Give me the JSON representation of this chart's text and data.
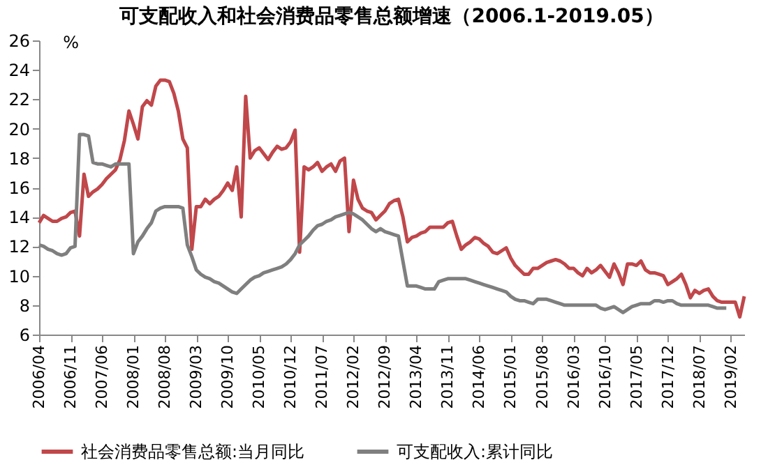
{
  "chart_data": {
    "type": "line",
    "title": "可支配收入和社会消费品零售总额增速（2006.1-2019.05）",
    "ylabel": "%",
    "categories": [
      "2006/04",
      null,
      null,
      null,
      null,
      null,
      null,
      "2006/11",
      null,
      null,
      null,
      null,
      null,
      null,
      "2007/06",
      null,
      null,
      null,
      null,
      null,
      null,
      "2008/01",
      null,
      null,
      null,
      null,
      null,
      null,
      "2008/08",
      null,
      null,
      null,
      null,
      null,
      null,
      "2009/03",
      null,
      null,
      null,
      null,
      null,
      null,
      "2009/10",
      null,
      null,
      null,
      null,
      null,
      null,
      "2010/05",
      null,
      null,
      null,
      null,
      null,
      null,
      "2010/12",
      null,
      null,
      null,
      null,
      null,
      null,
      "2011/07",
      null,
      null,
      null,
      null,
      null,
      null,
      "2012/02",
      null,
      null,
      null,
      null,
      null,
      null,
      "2012/09",
      null,
      null,
      null,
      null,
      null,
      null,
      "2013/04",
      null,
      null,
      null,
      null,
      null,
      null,
      "2013/11",
      null,
      null,
      null,
      null,
      null,
      null,
      "2014/06",
      null,
      null,
      null,
      null,
      null,
      null,
      "2015/01",
      null,
      null,
      null,
      null,
      null,
      null,
      "2015/08",
      null,
      null,
      null,
      null,
      null,
      null,
      "2016/03",
      null,
      null,
      null,
      null,
      null,
      null,
      "2016/10",
      null,
      null,
      null,
      null,
      null,
      null,
      "2017/05",
      null,
      null,
      null,
      null,
      null,
      null,
      "2017/12",
      null,
      null,
      null,
      null,
      null,
      null,
      "2018/07",
      null,
      null,
      null,
      null,
      null,
      null,
      "2019/02",
      null,
      null,
      null
    ],
    "series": [
      {
        "name": "社会消费品零售总额:当月同比",
        "color": "#c0474a",
        "values": [
          13.6,
          14.1,
          13.9,
          13.7,
          13.7,
          13.9,
          14.0,
          14.3,
          14.4,
          12.7,
          16.9,
          15.4,
          15.7,
          15.9,
          16.2,
          16.6,
          16.9,
          17.2,
          17.9,
          19.2,
          21.2,
          20.3,
          19.3,
          21.5,
          21.9,
          21.6,
          22.9,
          23.3,
          23.3,
          23.2,
          22.4,
          21.2,
          19.3,
          18.7,
          11.8,
          14.7,
          14.7,
          15.2,
          14.9,
          15.2,
          15.4,
          15.8,
          16.3,
          15.8,
          17.4,
          14.0,
          22.2,
          18.0,
          18.5,
          18.7,
          18.3,
          17.9,
          18.4,
          18.8,
          18.6,
          18.7,
          19.1,
          19.9,
          11.6,
          17.4,
          17.2,
          17.4,
          17.7,
          17.1,
          17.4,
          17.6,
          17.1,
          17.8,
          18.0,
          13.0,
          16.5,
          15.2,
          14.6,
          14.4,
          14.3,
          13.8,
          14.1,
          14.4,
          14.9,
          15.1,
          15.2,
          14.0,
          12.3,
          12.6,
          12.7,
          12.9,
          13.0,
          13.3,
          13.3,
          13.3,
          13.3,
          13.6,
          13.7,
          12.7,
          11.8,
          12.1,
          12.3,
          12.6,
          12.5,
          12.2,
          12.0,
          11.6,
          11.5,
          11.7,
          11.9,
          11.2,
          10.7,
          10.4,
          10.1,
          10.1,
          10.5,
          10.5,
          10.7,
          10.9,
          11.0,
          11.1,
          11.0,
          10.8,
          10.5,
          10.5,
          10.2,
          10.0,
          10.5,
          10.2,
          10.4,
          10.7,
          10.3,
          9.9,
          10.8,
          10.2,
          9.4,
          10.8,
          10.8,
          10.7,
          11.0,
          10.4,
          10.2,
          10.2,
          10.1,
          10.0,
          9.4,
          9.6,
          9.8,
          10.1,
          9.4,
          8.5,
          9.0,
          8.8,
          9.0,
          9.1,
          8.6,
          8.3,
          8.2,
          8.2,
          8.2,
          8.2,
          7.2,
          8.6
        ]
      },
      {
        "name": "可支配收入:累计同比",
        "color": "#7f7f7f",
        "values": [
          12.1,
          12.0,
          11.8,
          11.7,
          11.5,
          11.4,
          11.5,
          11.9,
          12.0,
          19.6,
          19.6,
          19.5,
          17.7,
          17.6,
          17.6,
          17.5,
          17.4,
          17.6,
          17.6,
          17.6,
          17.6,
          11.5,
          12.3,
          12.7,
          13.2,
          13.6,
          14.4,
          14.6,
          14.7,
          14.7,
          14.7,
          14.7,
          14.6,
          12.1,
          11.3,
          10.4,
          10.1,
          9.9,
          9.8,
          9.6,
          9.5,
          9.3,
          9.1,
          8.9,
          8.8,
          9.1,
          9.4,
          9.7,
          9.9,
          10.0,
          10.2,
          10.3,
          10.4,
          10.5,
          10.6,
          10.8,
          11.1,
          11.5,
          12.1,
          12.4,
          12.7,
          13.1,
          13.4,
          13.5,
          13.7,
          13.8,
          14.0,
          14.1,
          14.2,
          14.3,
          14.2,
          14.0,
          13.8,
          13.5,
          13.2,
          13.0,
          13.2,
          13.0,
          12.9,
          12.8,
          12.7,
          11.0,
          9.3,
          9.3,
          9.3,
          9.2,
          9.1,
          9.1,
          9.1,
          9.6,
          9.7,
          9.8,
          9.8,
          9.8,
          9.8,
          9.8,
          9.7,
          9.6,
          9.5,
          9.4,
          9.3,
          9.2,
          9.1,
          9.0,
          8.9,
          8.6,
          8.4,
          8.3,
          8.3,
          8.2,
          8.1,
          8.4,
          8.4,
          8.4,
          8.3,
          8.2,
          8.1,
          8.0,
          8.0,
          8.0,
          8.0,
          8.0,
          8.0,
          8.0,
          8.0,
          7.8,
          7.7,
          7.8,
          7.9,
          7.7,
          7.5,
          7.7,
          7.9,
          8.0,
          8.1,
          8.1,
          8.1,
          8.3,
          8.3,
          8.2,
          8.3,
          8.3,
          8.1,
          8.0,
          8.0,
          8.0,
          8.0,
          8.0,
          8.0,
          8.0,
          7.9,
          7.8,
          7.8,
          7.8,
          null,
          null,
          null,
          null
        ]
      }
    ],
    "ylim": [
      6,
      26
    ],
    "yticks": [
      6,
      8,
      10,
      12,
      14,
      16,
      18,
      20,
      22,
      24,
      26
    ],
    "grid": false,
    "legend": "bottom",
    "marker": "none",
    "line_style": "solid"
  }
}
